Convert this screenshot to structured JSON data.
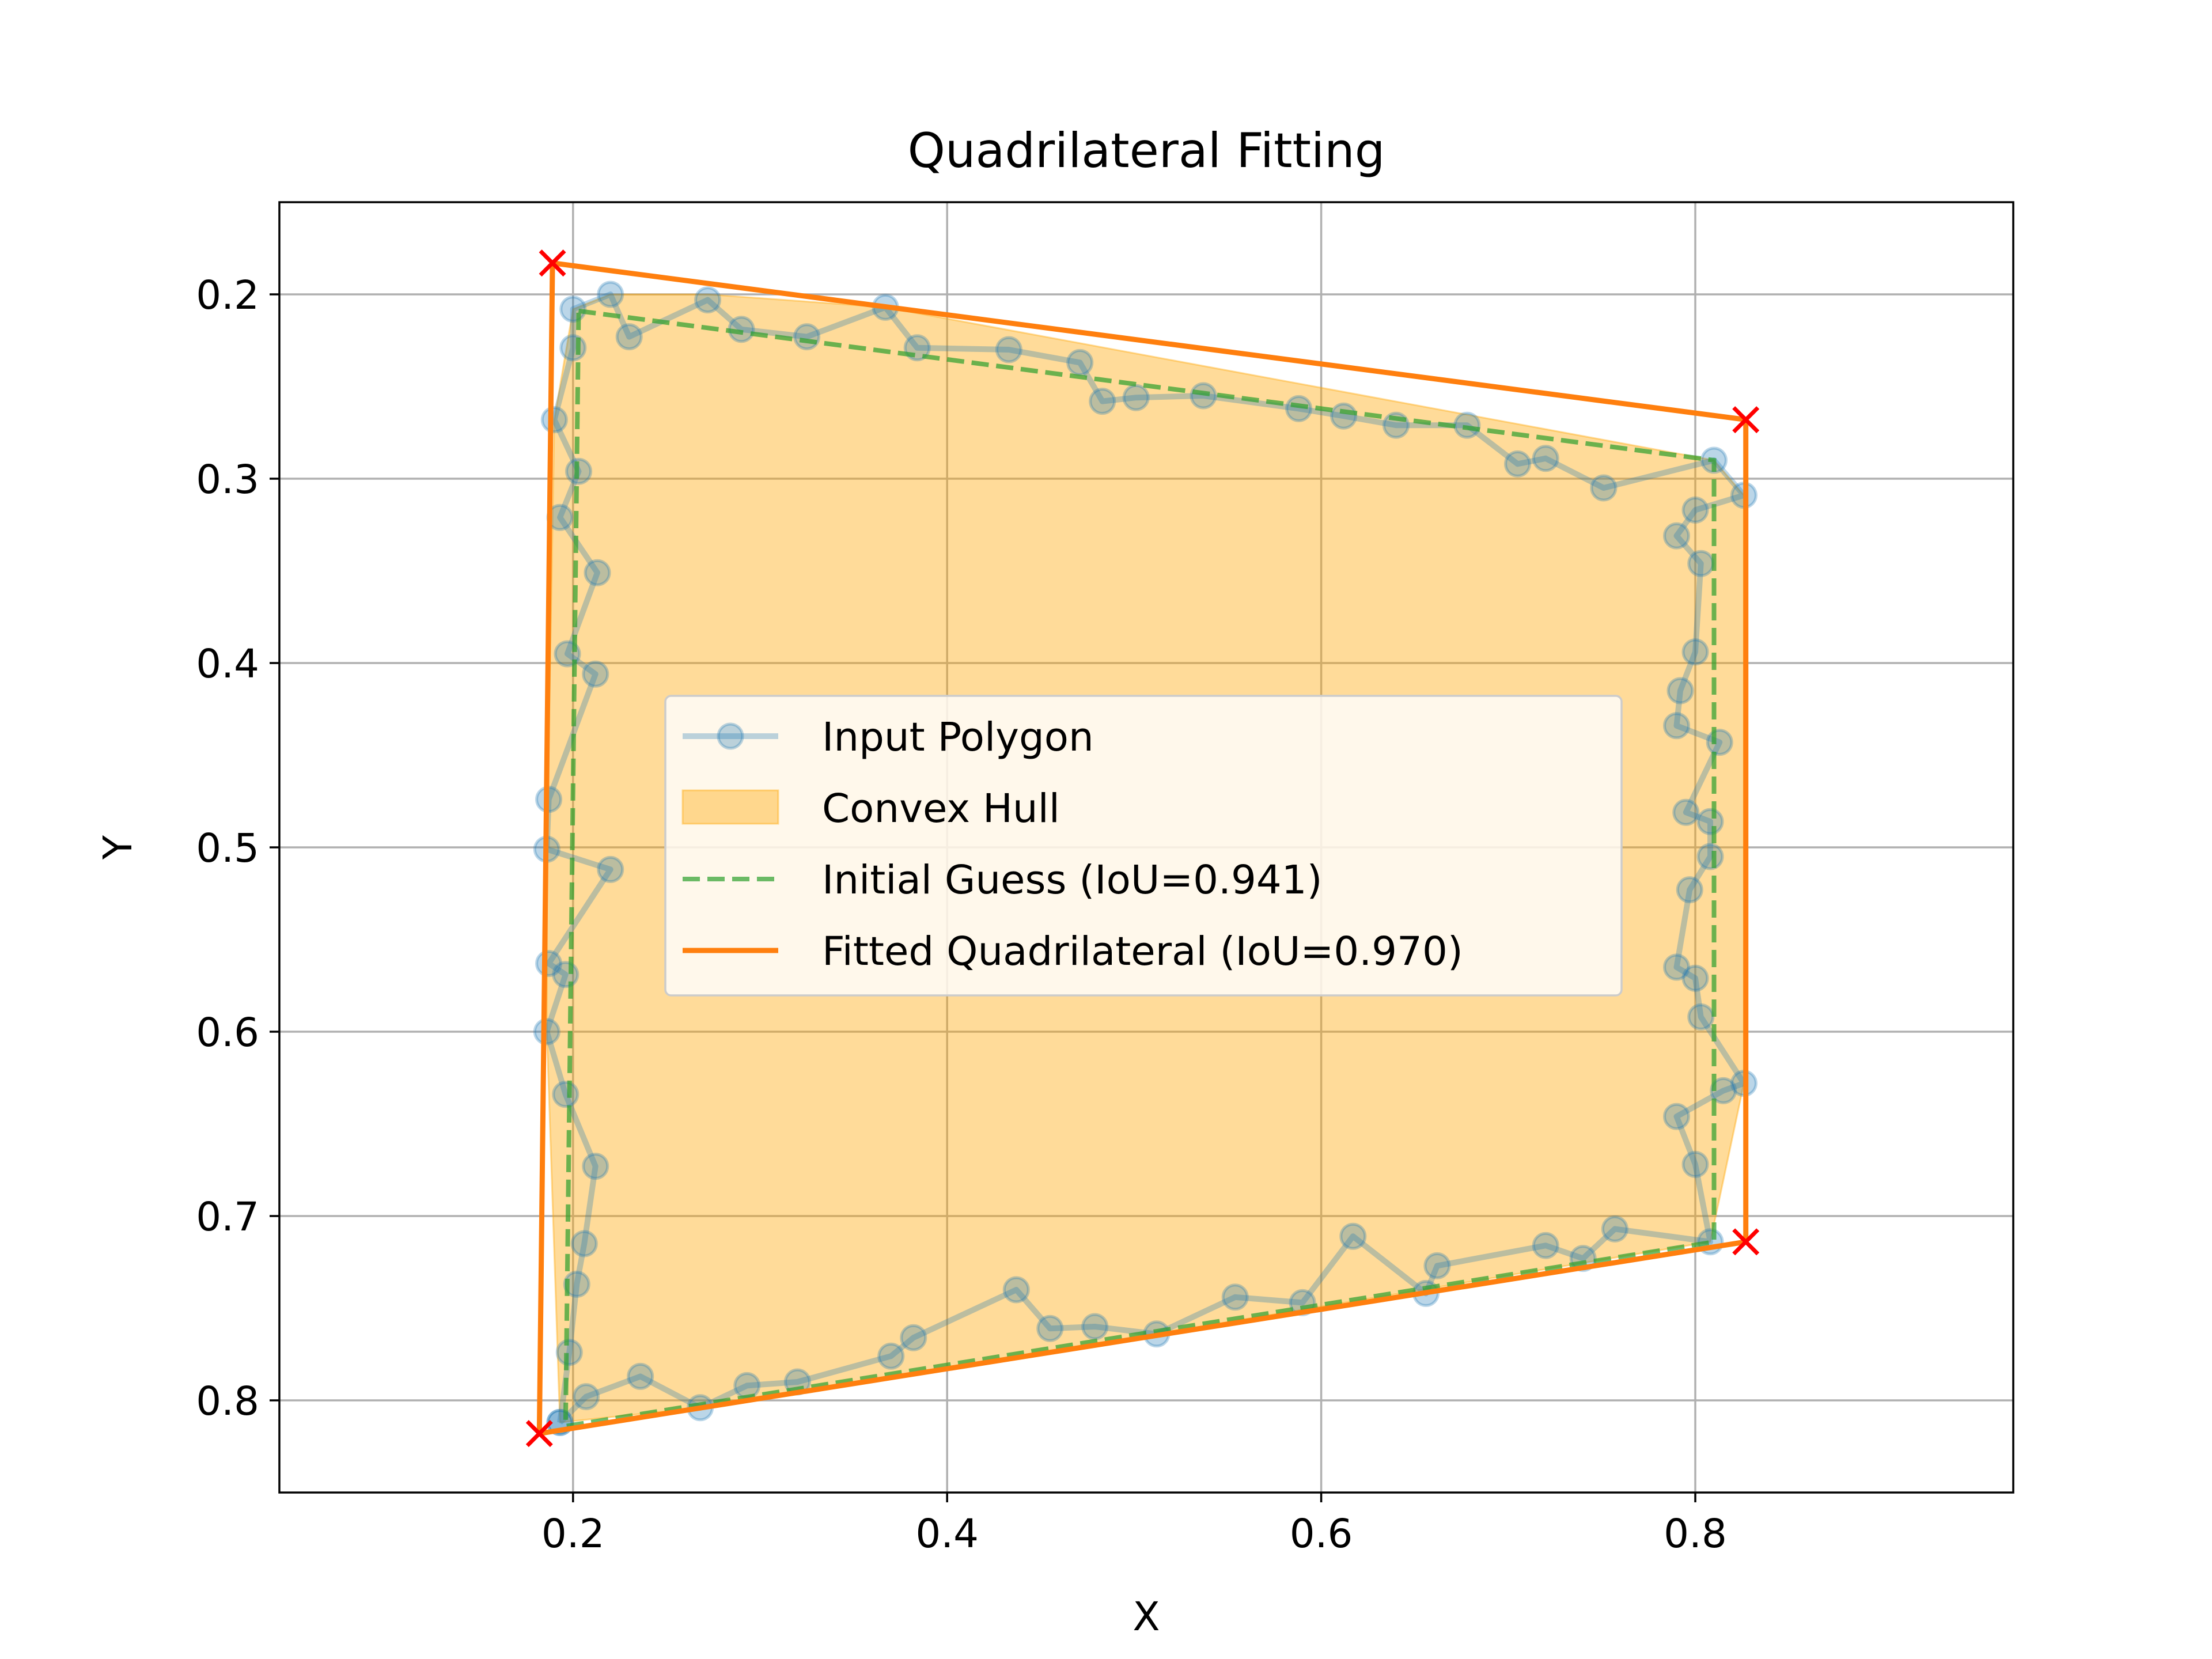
{
  "chart_data": {
    "type": "line",
    "title": "Quadrilateral Fitting",
    "xlabel": "X",
    "ylabel": "Y",
    "xlim": [
      0.043,
      0.97
    ],
    "ylim": [
      0.85,
      0.15
    ],
    "y_axis_inverted": true,
    "grid": true,
    "legend_position": "center",
    "xticks": [
      "0.2",
      "0.4",
      "0.6",
      "0.8"
    ],
    "yticks": [
      "0.2",
      "0.3",
      "0.4",
      "0.5",
      "0.6",
      "0.7",
      "0.8"
    ],
    "legend": [
      {
        "label": "Input Polygon",
        "kind": "line-marker",
        "color": "#1f77b4"
      },
      {
        "label": "Convex Hull",
        "kind": "patch",
        "color": "#ffa500"
      },
      {
        "label": "Initial Guess (IoU=0.941)",
        "kind": "dashed",
        "color": "#2ca02c"
      },
      {
        "label": "Fitted Quadrilateral (IoU=0.970)",
        "kind": "line",
        "color": "#ff7f0e"
      }
    ],
    "series": [
      {
        "name": "Input Polygon",
        "color": "#1f77b4",
        "points": [
          [
            0.193,
            0.812
          ],
          [
            0.207,
            0.798
          ],
          [
            0.236,
            0.787
          ],
          [
            0.268,
            0.804
          ],
          [
            0.293,
            0.792
          ],
          [
            0.32,
            0.79
          ],
          [
            0.37,
            0.776
          ],
          [
            0.382,
            0.766
          ],
          [
            0.437,
            0.74
          ],
          [
            0.455,
            0.761
          ],
          [
            0.479,
            0.76
          ],
          [
            0.512,
            0.764
          ],
          [
            0.554,
            0.744
          ],
          [
            0.59,
            0.747
          ],
          [
            0.617,
            0.711
          ],
          [
            0.656,
            0.742
          ],
          [
            0.662,
            0.727
          ],
          [
            0.72,
            0.716
          ],
          [
            0.74,
            0.723
          ],
          [
            0.757,
            0.707
          ],
          [
            0.808,
            0.714
          ],
          [
            0.8,
            0.672
          ],
          [
            0.79,
            0.646
          ],
          [
            0.815,
            0.632
          ],
          [
            0.826,
            0.628
          ],
          [
            0.803,
            0.592
          ],
          [
            0.8,
            0.571
          ],
          [
            0.79,
            0.565
          ],
          [
            0.797,
            0.523
          ],
          [
            0.808,
            0.505
          ],
          [
            0.808,
            0.486
          ],
          [
            0.795,
            0.481
          ],
          [
            0.813,
            0.443
          ],
          [
            0.79,
            0.434
          ],
          [
            0.792,
            0.415
          ],
          [
            0.8,
            0.394
          ],
          [
            0.803,
            0.346
          ],
          [
            0.79,
            0.331
          ],
          [
            0.8,
            0.317
          ],
          [
            0.826,
            0.309
          ],
          [
            0.81,
            0.29
          ],
          [
            0.751,
            0.305
          ],
          [
            0.72,
            0.289
          ],
          [
            0.705,
            0.292
          ],
          [
            0.678,
            0.271
          ],
          [
            0.64,
            0.271
          ],
          [
            0.612,
            0.266
          ],
          [
            0.588,
            0.262
          ],
          [
            0.537,
            0.255
          ],
          [
            0.501,
            0.256
          ],
          [
            0.483,
            0.258
          ],
          [
            0.471,
            0.237
          ],
          [
            0.433,
            0.23
          ],
          [
            0.384,
            0.229
          ],
          [
            0.367,
            0.207
          ],
          [
            0.325,
            0.223
          ],
          [
            0.29,
            0.219
          ],
          [
            0.272,
            0.203
          ],
          [
            0.23,
            0.223
          ],
          [
            0.22,
            0.2
          ],
          [
            0.2,
            0.208
          ],
          [
            0.2,
            0.229
          ],
          [
            0.19,
            0.268
          ],
          [
            0.203,
            0.296
          ],
          [
            0.193,
            0.321
          ],
          [
            0.213,
            0.351
          ],
          [
            0.197,
            0.395
          ],
          [
            0.212,
            0.406
          ],
          [
            0.187,
            0.474
          ],
          [
            0.186,
            0.501
          ],
          [
            0.22,
            0.512
          ],
          [
            0.187,
            0.563
          ],
          [
            0.196,
            0.569
          ],
          [
            0.186,
            0.6
          ],
          [
            0.196,
            0.634
          ],
          [
            0.212,
            0.673
          ],
          [
            0.206,
            0.715
          ],
          [
            0.202,
            0.737
          ],
          [
            0.198,
            0.774
          ],
          [
            0.193,
            0.812
          ]
        ]
      },
      {
        "name": "Convex Hull",
        "color": "#ffa500",
        "points": [
          [
            0.186,
            0.6
          ],
          [
            0.186,
            0.501
          ],
          [
            0.19,
            0.268
          ],
          [
            0.2,
            0.208
          ],
          [
            0.22,
            0.2
          ],
          [
            0.272,
            0.2
          ],
          [
            0.367,
            0.207
          ],
          [
            0.81,
            0.29
          ],
          [
            0.826,
            0.309
          ],
          [
            0.826,
            0.628
          ],
          [
            0.808,
            0.714
          ],
          [
            0.512,
            0.764
          ],
          [
            0.268,
            0.804
          ],
          [
            0.193,
            0.812
          ]
        ]
      },
      {
        "name": "Initial Guess (IoU=0.941)",
        "color": "#2ca02c",
        "points": [
          [
            0.203,
            0.209
          ],
          [
            0.81,
            0.29
          ],
          [
            0.81,
            0.714
          ],
          [
            0.196,
            0.814
          ],
          [
            0.203,
            0.209
          ]
        ]
      },
      {
        "name": "Fitted Quadrilateral (IoU=0.970)",
        "color": "#ff7f0e",
        "points": [
          [
            0.189,
            0.183
          ],
          [
            0.827,
            0.268
          ],
          [
            0.827,
            0.714
          ],
          [
            0.182,
            0.818
          ],
          [
            0.189,
            0.183
          ]
        ]
      },
      {
        "name": "Fitted corners",
        "color": "#ff0000",
        "points": [
          [
            0.189,
            0.183
          ],
          [
            0.827,
            0.268
          ],
          [
            0.827,
            0.714
          ],
          [
            0.182,
            0.818
          ]
        ]
      }
    ]
  }
}
